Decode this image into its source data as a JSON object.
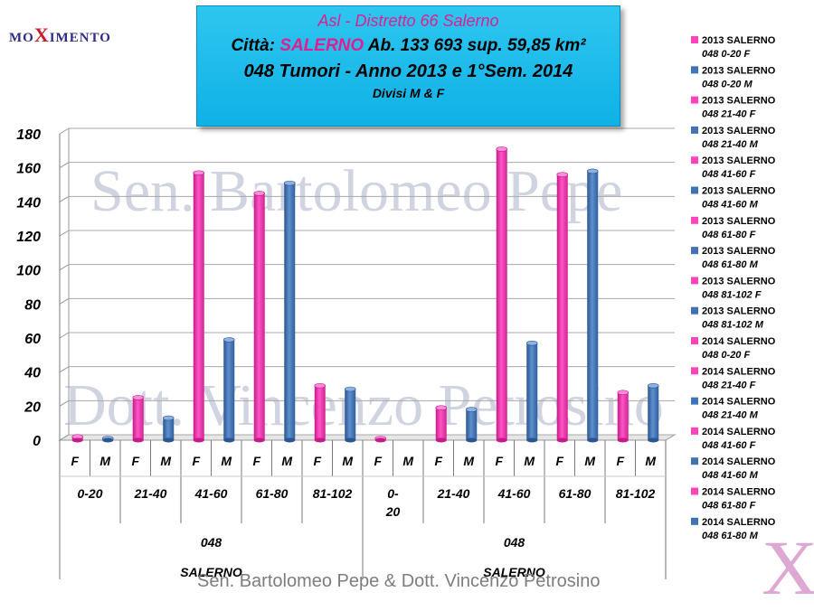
{
  "logo": {
    "pre": "MO",
    "x": "X",
    "post": "IMENTO"
  },
  "title": {
    "line1": "Asl - Distretto 66 Salerno",
    "line2_prefix": "Città:",
    "line2_city": "SALERNO",
    "line2_rest": "Ab. 133 693 sup. 59,85 km²",
    "line3": "048 Tumori - Anno 2013 e 1°Sem. 2014",
    "line4": "Divisi M & F"
  },
  "watermark": {
    "line1": "Sen. Bartolomeo Pepe",
    "line2": "Dott. Vincenzo Petrosino"
  },
  "footer": "Sen. Bartolomeo Pepe &  Dott. Vincenzo Petrosino",
  "big_x": "X",
  "colors": {
    "F": "#ff44bb",
    "M": "#3f73b4",
    "title_bg": "#1ab9ea",
    "title_accent": "#e21d8f"
  },
  "chart_data": {
    "type": "bar",
    "ylim": [
      0,
      180
    ],
    "yticks": [
      0,
      20,
      40,
      60,
      80,
      100,
      120,
      140,
      160,
      180
    ],
    "grid": true,
    "legend_position": "right",
    "x_levels": {
      "groups": [
        {
          "label": "SALERNO",
          "code": "048",
          "year": "2013",
          "ages": [
            {
              "label": "0-20",
              "values": {
                "F": 2,
                "M": 1
              }
            },
            {
              "label": "21-40",
              "values": {
                "F": 25,
                "M": 13
              }
            },
            {
              "label": "41-60",
              "values": {
                "F": 157,
                "M": 59
              }
            },
            {
              "label": "61-80",
              "values": {
                "F": 145,
                "M": 151
              }
            },
            {
              "label": "81-102",
              "values": {
                "F": 32,
                "M": 30
              }
            }
          ]
        },
        {
          "label": "SALERNO",
          "code": "048",
          "year": "2014",
          "ages": [
            {
              "label": "0-20",
              "values": {
                "F": 1,
                "M": null
              }
            },
            {
              "label": "21-40",
              "values": {
                "F": 19,
                "M": 18
              }
            },
            {
              "label": "41-60",
              "values": {
                "F": 171,
                "M": 57
              }
            },
            {
              "label": "61-80",
              "values": {
                "F": 156,
                "M": 158
              }
            },
            {
              "label": "81-102",
              "values": {
                "F": 28,
                "M": 32
              }
            }
          ]
        }
      ]
    },
    "sex_labels": [
      "F",
      "M"
    ],
    "legend": [
      "2013 SALERNO 048 0-20 F",
      "2013 SALERNO 048 0-20 M",
      "2013 SALERNO 048 21-40 F",
      "2013 SALERNO 048 21-40 M",
      "2013 SALERNO 048 41-60 F",
      "2013 SALERNO 048 41-60 M",
      "2013 SALERNO 048 61-80 F",
      "2013 SALERNO 048 61-80 M",
      "2013 SALERNO 048 81-102 F",
      "2013 SALERNO 048 81-102 M",
      "2014 SALERNO 048 0-20 F",
      "2014 SALERNO 048 21-40 F",
      "2014 SALERNO 048 21-40 M",
      "2014 SALERNO 048 41-60 F",
      "2014 SALERNO 048 41-60 M",
      "2014 SALERNO 048 61-80 F",
      "2014 SALERNO 048 61-80 M"
    ]
  }
}
